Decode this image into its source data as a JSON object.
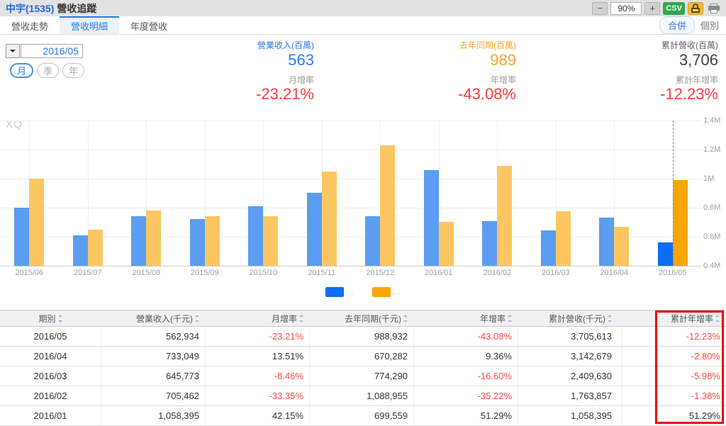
{
  "header": {
    "stock": "中宇(1535)",
    "page_title": "營收追蹤",
    "toolbar": {
      "zoom_out": "−",
      "zoom_level": "90%",
      "zoom_in": "+",
      "csv_label": "CSV"
    }
  },
  "tabs": [
    {
      "label": "營收走勢",
      "active": false
    },
    {
      "label": "營收明細",
      "active": true
    },
    {
      "label": "年度營收",
      "active": false
    }
  ],
  "view_toggle": {
    "merged": "合併",
    "individual": "個別"
  },
  "controls": {
    "period_value": "2016/05",
    "period_buttons": [
      {
        "label": "月",
        "active": true
      },
      {
        "label": "季",
        "active": false
      },
      {
        "label": "年",
        "active": false
      }
    ]
  },
  "stats": [
    {
      "label": "營業收入(百萬)",
      "value": "563",
      "label_color": "#2d7be8",
      "value_color": "#2d7be8",
      "sub_label": "月增率",
      "sub_value": "-23.21%"
    },
    {
      "label": "去年同期(百萬)",
      "value": "989",
      "label_color": "#f6a728",
      "value_color": "#f6a728",
      "sub_label": "年增率",
      "sub_value": "-43.08%"
    },
    {
      "label": "累計營收(百萬)",
      "value": "3,706",
      "label_color": "#5f6368",
      "value_color": "#3f4348",
      "sub_label": "累計年增率",
      "sub_value": "-12.23%"
    }
  ],
  "chart_data": {
    "type": "bar",
    "watermark": "XQ",
    "categories": [
      "2015/06",
      "2015/07",
      "2015/08",
      "2015/09",
      "2015/10",
      "2015/11",
      "2015/12",
      "2016/01",
      "2016/02",
      "2016/03",
      "2016/04",
      "2016/05"
    ],
    "series": [
      {
        "name": "營業收入",
        "color_normal": "#5b9df0",
        "color_current": "#0c6ef2",
        "values": [
          0.8,
          0.61,
          0.74,
          0.72,
          0.81,
          0.9,
          0.74,
          1.058,
          0.705,
          0.646,
          0.733,
          0.563
        ]
      },
      {
        "name": "去年同期",
        "color_normal": "#fcc662",
        "color_current": "#f8a506",
        "values": [
          1.0,
          0.65,
          0.78,
          0.74,
          0.74,
          1.05,
          1.23,
          0.7,
          1.089,
          0.774,
          0.67,
          0.989
        ]
      }
    ],
    "unit": "M",
    "ylim": [
      0.4,
      1.4
    ],
    "y_ticks": [
      "1.4M",
      "1.2M",
      "1M",
      "0.8M",
      "0.6M",
      "0.4M"
    ],
    "grid": true,
    "legend": [
      "...",
      "..."
    ],
    "legend_position": "bottom-center",
    "highlight_index": 11,
    "current_month_marker": "dashed-line"
  },
  "table": {
    "columns": [
      "期別",
      "營業收入(千元)",
      "月增率",
      "去年同期(千元)",
      "年增率",
      "累計營收(千元)",
      "累計年增率"
    ],
    "rows": [
      [
        "2016/05",
        "562,934",
        "-23.21%",
        "988,932",
        "-43.08%",
        "3,705,613",
        "-12.23%"
      ],
      [
        "2016/04",
        "733,049",
        "13.51%",
        "670,282",
        "9.36%",
        "3,142,679",
        "-2.80%"
      ],
      [
        "2016/03",
        "645,773",
        "-8.46%",
        "774,290",
        "-16.60%",
        "2,409,630",
        "-5.98%"
      ],
      [
        "2016/02",
        "705,462",
        "-33.35%",
        "1,088,955",
        "-35.22%",
        "1,763,857",
        "-1.38%"
      ],
      [
        "2016/01",
        "1,058,395",
        "42.15%",
        "699,559",
        "51.29%",
        "1,058,395",
        "51.29%"
      ]
    ],
    "highlighted_column": "累計年增率",
    "highlight_color": "#e8000d"
  }
}
